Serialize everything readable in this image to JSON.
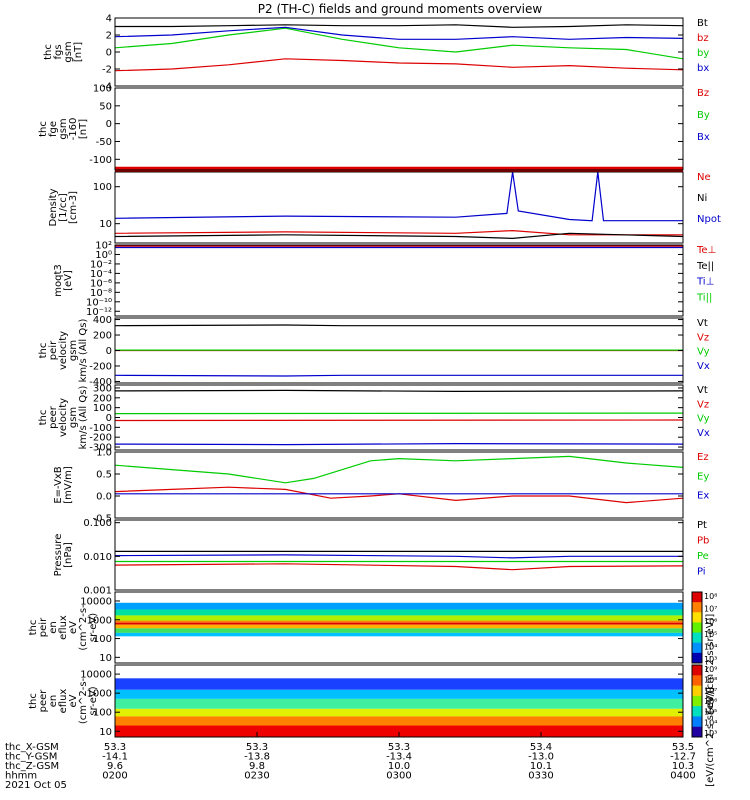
{
  "title": "P2 (TH-C) fields and ground moments overview",
  "footer": {
    "rows": [
      {
        "label": "thc_X-GSM",
        "values": [
          "53.3",
          "53.3",
          "53.3",
          "53.4",
          "53.5"
        ]
      },
      {
        "label": "thc_Y-GSM",
        "values": [
          "-14.1",
          "-13.8",
          "-13.4",
          "-13.0",
          "-12.7"
        ]
      },
      {
        "label": "thc_Z-GSM",
        "values": [
          "9.6",
          "9.8",
          "10.0",
          "10.1",
          "10.3"
        ]
      },
      {
        "label": "hhmm",
        "values": [
          "0200",
          "0230",
          "0300",
          "0330",
          "0400"
        ]
      }
    ],
    "date": "2021 Oct 05"
  },
  "colors": {
    "black": "#000000",
    "red": "#dd0000",
    "green": "#00cc00",
    "blue": "#0000cc"
  },
  "chart_data": [
    {
      "type": "line",
      "ylabel": [
        "thc",
        "fgs",
        "gsm",
        "[nT]"
      ],
      "ylim": [
        -4,
        4
      ],
      "yticks": [
        "-4",
        "-2",
        "0",
        "2",
        "4"
      ],
      "legend": [
        {
          "text": "Bt",
          "color": "#000000"
        },
        {
          "text": "bz",
          "color": "#dd0000"
        },
        {
          "text": "by",
          "color": "#00cc00"
        },
        {
          "text": "bx",
          "color": "#0000cc"
        }
      ],
      "series": [
        {
          "name": "Bt",
          "color": "#000000",
          "x": [
            0,
            0.1,
            0.2,
            0.3,
            0.4,
            0.5,
            0.6,
            0.7,
            0.8,
            0.9,
            1
          ],
          "values": [
            3.0,
            3.0,
            3.1,
            3.2,
            3.1,
            3.1,
            3.2,
            2.9,
            3.0,
            3.2,
            3.1
          ]
        },
        {
          "name": "bz",
          "color": "#dd0000",
          "x": [
            0,
            0.1,
            0.2,
            0.3,
            0.4,
            0.5,
            0.6,
            0.7,
            0.8,
            0.9,
            1
          ],
          "values": [
            -2.2,
            -2.0,
            -1.5,
            -0.8,
            -1.0,
            -1.3,
            -1.4,
            -1.8,
            -1.6,
            -1.9,
            -2.1
          ]
        },
        {
          "name": "by",
          "color": "#00cc00",
          "x": [
            0,
            0.1,
            0.2,
            0.3,
            0.4,
            0.5,
            0.6,
            0.7,
            0.8,
            0.9,
            1
          ],
          "values": [
            0.5,
            1.0,
            2.0,
            2.8,
            1.5,
            0.5,
            0.0,
            0.8,
            0.5,
            0.3,
            -0.8
          ]
        },
        {
          "name": "bx",
          "color": "#0000cc",
          "x": [
            0,
            0.1,
            0.2,
            0.3,
            0.4,
            0.5,
            0.6,
            0.7,
            0.8,
            0.9,
            1
          ],
          "values": [
            1.8,
            2.0,
            2.5,
            2.9,
            2.0,
            1.5,
            1.5,
            1.8,
            1.5,
            1.7,
            1.6
          ]
        }
      ]
    },
    {
      "type": "line",
      "ylabel": [
        "thc",
        "fge",
        "gsm",
        "-160",
        "[nT]"
      ],
      "ylim": [
        -130,
        100
      ],
      "yticks": [
        "-100",
        "-50",
        "0",
        "50",
        "100"
      ],
      "legend": [
        {
          "text": "Bz",
          "color": "#dd0000"
        },
        {
          "text": "By",
          "color": "#00cc00"
        },
        {
          "text": "Bx",
          "color": "#0000cc"
        }
      ],
      "series": [
        {
          "name": "Bz",
          "color": "#dd0000",
          "x": [
            0,
            1
          ],
          "values": [
            -128,
            -128
          ]
        }
      ]
    },
    {
      "type": "line",
      "ylabel": [
        "Density",
        "[1/cc]",
        "[cm-3]"
      ],
      "ylog": true,
      "ylim": [
        3,
        250
      ],
      "yticks": [
        "100",
        "10"
      ],
      "ytick_values": [
        100,
        10
      ],
      "legend": [
        {
          "text": "Ne",
          "color": "#dd0000"
        },
        {
          "text": "Ni",
          "color": "#000000"
        },
        {
          "text": "Npot",
          "color": "#0000cc"
        }
      ],
      "series": [
        {
          "name": "Npot",
          "color": "#0000cc",
          "x": [
            0,
            0.3,
            0.6,
            0.69,
            0.7,
            0.71,
            0.8,
            0.84,
            0.85,
            0.86,
            1
          ],
          "values": [
            14,
            16,
            15,
            19,
            250,
            22,
            13,
            12,
            250,
            12,
            12
          ]
        },
        {
          "name": "Ne",
          "color": "#dd0000",
          "x": [
            0,
            0.3,
            0.6,
            0.7,
            0.8,
            1
          ],
          "values": [
            5.5,
            6,
            5.5,
            6.5,
            5,
            5
          ]
        },
        {
          "name": "Ni",
          "color": "#000000",
          "x": [
            0,
            0.3,
            0.6,
            0.7,
            0.8,
            1
          ],
          "values": [
            4.5,
            5,
            4.5,
            4,
            5.5,
            4.5
          ]
        }
      ]
    },
    {
      "type": "line",
      "ylabel": [
        "moqt3",
        "[eV]"
      ],
      "ylog": true,
      "ylim": [
        1e-13,
        100
      ],
      "yticks": [
        "10²",
        "10⁰",
        "10⁻²",
        "10⁻⁴",
        "10⁻⁶",
        "10⁻⁸",
        "10⁻¹⁰",
        "10⁻¹²"
      ],
      "ytick_values": [
        100,
        1,
        0.01,
        0.0001,
        1e-06,
        1e-08,
        1e-10,
        1e-12
      ],
      "legend": [
        {
          "text": "Te⊥",
          "color": "#dd0000"
        },
        {
          "text": "Te||",
          "color": "#000000"
        },
        {
          "text": "Ti⊥",
          "color": "#0000cc"
        },
        {
          "text": "Ti||",
          "color": "#00cc00"
        }
      ],
      "series": [
        {
          "name": "Te⊥",
          "color": "#dd0000",
          "x": [
            0,
            1
          ],
          "values": [
            60,
            60
          ]
        },
        {
          "name": "Ti⊥",
          "color": "#0000cc",
          "x": [
            0,
            1
          ],
          "values": [
            30,
            30
          ]
        }
      ]
    },
    {
      "type": "line",
      "ylabel": [
        "thc",
        "peir",
        "velocity",
        "gsm",
        "km/s (All Qs)"
      ],
      "ylim": [
        -420,
        420
      ],
      "yticks": [
        "-400",
        "-200",
        "0",
        "200",
        "400"
      ],
      "legend": [
        {
          "text": "Vt",
          "color": "#000000"
        },
        {
          "text": "Vz",
          "color": "#dd0000"
        },
        {
          "text": "Vy",
          "color": "#00cc00"
        },
        {
          "text": "Vx",
          "color": "#0000cc"
        }
      ],
      "series": [
        {
          "name": "Vt",
          "color": "#000000",
          "x": [
            0,
            0.3,
            0.4,
            1
          ],
          "values": [
            320,
            330,
            320,
            320
          ]
        },
        {
          "name": "Vz",
          "color": "#dd0000",
          "x": [
            0,
            1
          ],
          "values": [
            0,
            0
          ]
        },
        {
          "name": "Vy",
          "color": "#00cc00",
          "x": [
            0,
            1
          ],
          "values": [
            5,
            5
          ]
        },
        {
          "name": "Vx",
          "color": "#0000cc",
          "x": [
            0,
            0.3,
            0.4,
            1
          ],
          "values": [
            -320,
            -330,
            -320,
            -320
          ]
        }
      ]
    },
    {
      "type": "line",
      "ylabel": [
        "thc",
        "peer",
        "velocity",
        "gsm",
        "km/s (All Qs)"
      ],
      "ylim": [
        -330,
        330
      ],
      "yticks": [
        "-300",
        "-200",
        "-100",
        "0",
        "100",
        "200",
        "300"
      ],
      "legend": [
        {
          "text": "Vt",
          "color": "#000000"
        },
        {
          "text": "Vz",
          "color": "#dd0000"
        },
        {
          "text": "Vy",
          "color": "#00cc00"
        },
        {
          "text": "Vx",
          "color": "#0000cc"
        }
      ],
      "series": [
        {
          "name": "Vt",
          "color": "#000000",
          "x": [
            0,
            0.3,
            0.6,
            1
          ],
          "values": [
            270,
            275,
            265,
            270
          ]
        },
        {
          "name": "Vz",
          "color": "#dd0000",
          "x": [
            0,
            1
          ],
          "values": [
            -30,
            -25
          ]
        },
        {
          "name": "Vy",
          "color": "#00cc00",
          "x": [
            0,
            1
          ],
          "values": [
            40,
            45
          ]
        },
        {
          "name": "Vx",
          "color": "#0000cc",
          "x": [
            0,
            0.3,
            0.6,
            1
          ],
          "values": [
            -270,
            -275,
            -265,
            -270
          ]
        }
      ]
    },
    {
      "type": "line",
      "ylabel": [
        "E=-VxB",
        "[mV/m]"
      ],
      "ylim": [
        -0.5,
        1.0
      ],
      "yticks": [
        "-0.5",
        "0.0",
        "0.5",
        "1.0"
      ],
      "legend": [
        {
          "text": "Ez",
          "color": "#dd0000"
        },
        {
          "text": "Ey",
          "color": "#00cc00"
        },
        {
          "text": "Ex",
          "color": "#0000cc"
        }
      ],
      "series": [
        {
          "name": "Ez",
          "color": "#dd0000",
          "x": [
            0,
            0.1,
            0.2,
            0.3,
            0.38,
            0.45,
            0.5,
            0.6,
            0.7,
            0.8,
            0.9,
            1
          ],
          "values": [
            0.1,
            0.15,
            0.2,
            0.15,
            -0.05,
            0.0,
            0.05,
            -0.1,
            0.0,
            0.0,
            -0.15,
            -0.05
          ]
        },
        {
          "name": "Ey",
          "color": "#00cc00",
          "x": [
            0,
            0.1,
            0.2,
            0.3,
            0.35,
            0.45,
            0.5,
            0.6,
            0.7,
            0.8,
            0.9,
            1
          ],
          "values": [
            0.7,
            0.6,
            0.5,
            0.3,
            0.4,
            0.8,
            0.85,
            0.8,
            0.85,
            0.9,
            0.75,
            0.65
          ]
        },
        {
          "name": "Ex",
          "color": "#0000cc",
          "x": [
            0,
            1
          ],
          "values": [
            0.05,
            0.05
          ]
        }
      ]
    },
    {
      "type": "line",
      "ylabel": [
        "Pressure",
        "[nPa]"
      ],
      "ylog": true,
      "ylim": [
        0.001,
        0.12
      ],
      "yticks": [
        "0.100",
        "0.010",
        "0.001"
      ],
      "ytick_values": [
        0.1,
        0.01,
        0.001
      ],
      "legend": [
        {
          "text": "Pt",
          "color": "#000000"
        },
        {
          "text": "Pb",
          "color": "#dd0000"
        },
        {
          "text": "Pe",
          "color": "#00cc00"
        },
        {
          "text": "Pi",
          "color": "#0000cc"
        }
      ],
      "series": [
        {
          "name": "Pt",
          "color": "#000000",
          "x": [
            0,
            1
          ],
          "values": [
            0.014,
            0.014
          ]
        },
        {
          "name": "Pi",
          "color": "#0000cc",
          "x": [
            0,
            0.3,
            0.6,
            0.7,
            0.8,
            1
          ],
          "values": [
            0.0105,
            0.011,
            0.01,
            0.009,
            0.01,
            0.01
          ]
        },
        {
          "name": "Pe",
          "color": "#00cc00",
          "x": [
            0,
            1
          ],
          "values": [
            0.007,
            0.007
          ]
        },
        {
          "name": "Pb",
          "color": "#dd0000",
          "x": [
            0,
            0.3,
            0.6,
            0.7,
            0.8,
            1
          ],
          "values": [
            0.0055,
            0.006,
            0.005,
            0.004,
            0.005,
            0.0052
          ]
        }
      ]
    },
    {
      "type": "heatmap",
      "ylabel": [
        "thc",
        "peir",
        "en",
        "eflux",
        "eV",
        "(cm^2-s-",
        "sr-eV)"
      ],
      "ylog": true,
      "ylim": [
        5,
        30000
      ],
      "yticks": [
        "10000",
        "1000",
        "100",
        "10"
      ],
      "ytick_values": [
        10000,
        1000,
        100,
        10
      ],
      "colorbar": {
        "label": "[eV/(cm^2-s-sr-eV)]",
        "ticks": [
          "10⁸",
          "10⁷",
          "10⁶",
          "10⁵",
          "10⁴",
          "10³"
        ]
      }
    },
    {
      "type": "heatmap",
      "ylabel": [
        "thc",
        "peer",
        "en",
        "eflux",
        "eV",
        "(cm^2-s-",
        "sr-eV)"
      ],
      "ylog": true,
      "ylim": [
        5,
        30000
      ],
      "yticks": [
        "10000",
        "1000",
        "100",
        "10"
      ],
      "ytick_values": [
        10000,
        1000,
        100,
        10
      ],
      "colorbar": {
        "label": "[eV/(cm^2-s-sr-eV)]",
        "ticks": [
          "10⁹",
          "10⁸",
          "10⁷",
          "10⁶",
          "10⁵",
          "10⁴",
          "10³"
        ]
      }
    }
  ]
}
